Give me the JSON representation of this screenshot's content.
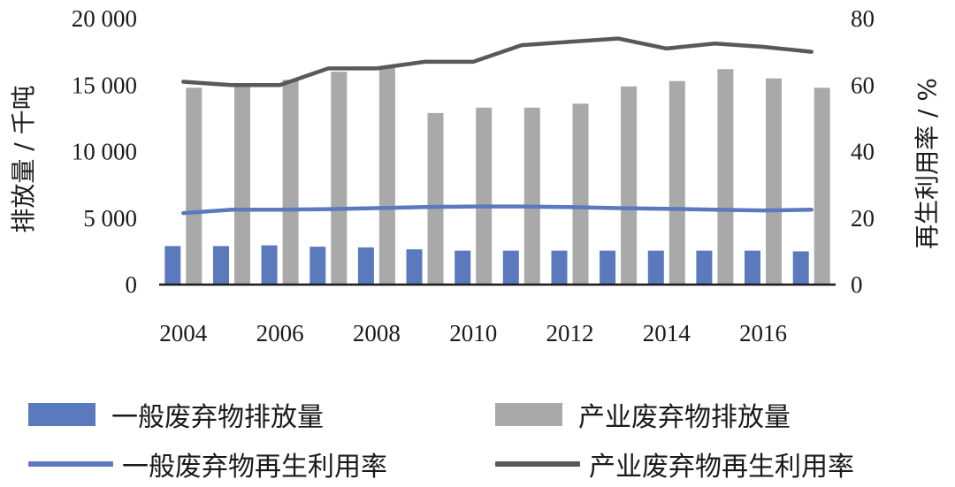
{
  "chart_data": {
    "type": "bar",
    "x": [
      "2004",
      "2005",
      "2006",
      "2007",
      "2008",
      "2009",
      "2010",
      "2011",
      "2012",
      "2013",
      "2014",
      "2015",
      "2016",
      "2017"
    ],
    "x_tick_labels": [
      "2004",
      "2006",
      "2008",
      "2010",
      "2012",
      "2014",
      "2016"
    ],
    "y_left": {
      "label": "排放量 / 千吨",
      "range": [
        0,
        20000
      ],
      "ticks": [
        0,
        5000,
        10000,
        15000,
        20000
      ],
      "tick_labels": [
        "0",
        "5 000",
        "10 000",
        "15 000",
        "20 000"
      ]
    },
    "y_right": {
      "label": "再生利用率 / %",
      "range": [
        0,
        80
      ],
      "ticks": [
        0,
        20,
        40,
        60,
        80
      ],
      "tick_labels": [
        "0",
        "20",
        "40",
        "60",
        "80"
      ]
    },
    "series": [
      {
        "name": "一般废弃物排放量",
        "kind": "bar",
        "axis": "left",
        "color": "#5b79bd",
        "values": [
          2900,
          2900,
          2950,
          2850,
          2800,
          2650,
          2550,
          2550,
          2550,
          2550,
          2550,
          2550,
          2550,
          2500
        ]
      },
      {
        "name": "产业废弃物排放量",
        "kind": "bar",
        "axis": "left",
        "color": "#a9a9a9",
        "values": [
          14800,
          14900,
          15400,
          16000,
          16400,
          12900,
          13300,
          13300,
          13600,
          14900,
          15300,
          16200,
          15500,
          14800
        ]
      },
      {
        "name": "一般废弃物再生利用率",
        "kind": "line",
        "axis": "right",
        "color": "#5b79bd",
        "values": [
          21.5,
          22.5,
          22.5,
          22.7,
          23,
          23.3,
          23.5,
          23.5,
          23.3,
          23,
          22.8,
          22.5,
          22.3,
          22.5
        ]
      },
      {
        "name": "产业废弃物再生利用率",
        "kind": "line",
        "axis": "right",
        "color": "#595959",
        "values": [
          61,
          60,
          60,
          65,
          65,
          67,
          67,
          72,
          73,
          74,
          71,
          72.5,
          71.5,
          70
        ]
      }
    ],
    "grid": false,
    "legend_position": "bottom"
  }
}
